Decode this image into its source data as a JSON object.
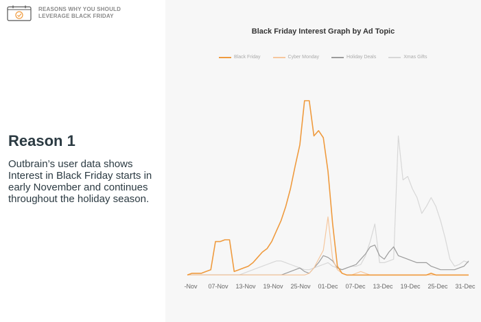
{
  "header": {
    "line1": "REASONS WHY YOU SHOULD",
    "line2": "LEVERAGE BLACK FRIDAY",
    "icon": "calendar-check-icon"
  },
  "main": {
    "title": "Reason 1",
    "body": "Outbrain’s user data shows Interest in Black Friday starts in early November and continues throughout the holiday season."
  },
  "chart_data": {
    "type": "line",
    "title": "Black Friday Interest Graph by Ad Topic",
    "xlabel": "",
    "ylabel": "",
    "ylim": [
      0,
      100
    ],
    "x_tick_labels": [
      "-Nov",
      "07-Nov",
      "13-Nov",
      "19-Nov",
      "25-Nov",
      "01-Dec",
      "07-Dec",
      "13-Dec",
      "19-Dec",
      "25-Dec",
      "31-Dec"
    ],
    "x_count": 61,
    "legend_position": "top",
    "grid": false,
    "series": [
      {
        "name": "Black Friday",
        "color": "#ef9a3d",
        "values": [
          1,
          2,
          2,
          2,
          3,
          4,
          20,
          20,
          21,
          21,
          3,
          4,
          5,
          6,
          8,
          11,
          14,
          16,
          20,
          26,
          32,
          40,
          50,
          63,
          75,
          100,
          100,
          80,
          83,
          79,
          60,
          30,
          6,
          2,
          1,
          1,
          1,
          1,
          1,
          1,
          1,
          1,
          1,
          1,
          1,
          1,
          1,
          1,
          1,
          1,
          1,
          1,
          2,
          1,
          1,
          1,
          1,
          1,
          1,
          1,
          1
        ]
      },
      {
        "name": "Cyber Monday",
        "color": "#f6c79e",
        "values": [
          1,
          1,
          1,
          1,
          1,
          1,
          1,
          1,
          1,
          1,
          1,
          1,
          1,
          1,
          1,
          1,
          1,
          1,
          1,
          1,
          1,
          1,
          1,
          1,
          1,
          1,
          2,
          5,
          10,
          15,
          34,
          10,
          4,
          2,
          1,
          1,
          2,
          3,
          2,
          1,
          1,
          1,
          1,
          1,
          1,
          1,
          1,
          1,
          1,
          1,
          1,
          1,
          1,
          1,
          1,
          1,
          1,
          1,
          1,
          1,
          1
        ]
      },
      {
        "name": "Holiday Deals",
        "color": "#9b9b9b",
        "values": [
          1,
          1,
          1,
          1,
          1,
          1,
          1,
          1,
          1,
          1,
          1,
          1,
          1,
          1,
          1,
          1,
          1,
          1,
          1,
          1,
          1,
          2,
          3,
          4,
          5,
          3,
          2,
          5,
          8,
          12,
          11,
          9,
          5,
          4,
          5,
          6,
          7,
          10,
          13,
          17,
          18,
          12,
          10,
          14,
          17,
          12,
          11,
          10,
          9,
          8,
          8,
          8,
          6,
          5,
          4,
          4,
          4,
          4,
          5,
          6,
          9
        ]
      },
      {
        "name": "Xmas Gifts",
        "color": "#d7d7d7",
        "values": [
          1,
          1,
          1,
          1,
          1,
          1,
          1,
          1,
          1,
          1,
          1,
          1,
          2,
          3,
          4,
          5,
          6,
          7,
          8,
          9,
          9,
          8,
          7,
          6,
          5,
          4,
          4,
          5,
          6,
          7,
          8,
          6,
          5,
          4,
          5,
          6,
          6,
          7,
          12,
          20,
          30,
          8,
          8,
          9,
          10,
          80,
          55,
          57,
          50,
          45,
          36,
          40,
          45,
          40,
          32,
          22,
          10,
          6,
          7,
          9,
          8
        ]
      }
    ]
  }
}
